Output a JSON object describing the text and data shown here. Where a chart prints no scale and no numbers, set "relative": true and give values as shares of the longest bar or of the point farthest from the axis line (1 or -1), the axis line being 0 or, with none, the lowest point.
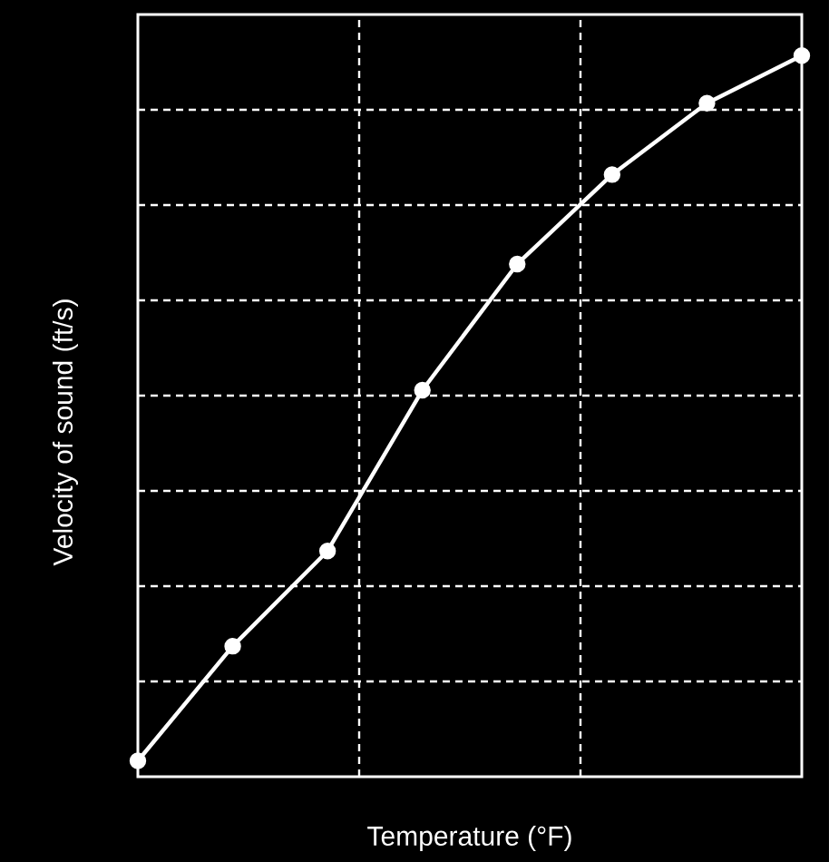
{
  "chart_data": {
    "type": "line",
    "relative": true,
    "xlabel": "Temperature (°F)",
    "ylabel": "Velocity of sound (ft/s)",
    "categories": [
      null,
      null,
      null,
      null,
      null,
      null,
      null,
      null
    ],
    "values": [
      0.022,
      0.181,
      0.313,
      0.536,
      0.711,
      0.835,
      0.934,
      1
    ],
    "color": "#ffffff",
    "marker": "circle",
    "line_style": "solid",
    "grid": true
  }
}
